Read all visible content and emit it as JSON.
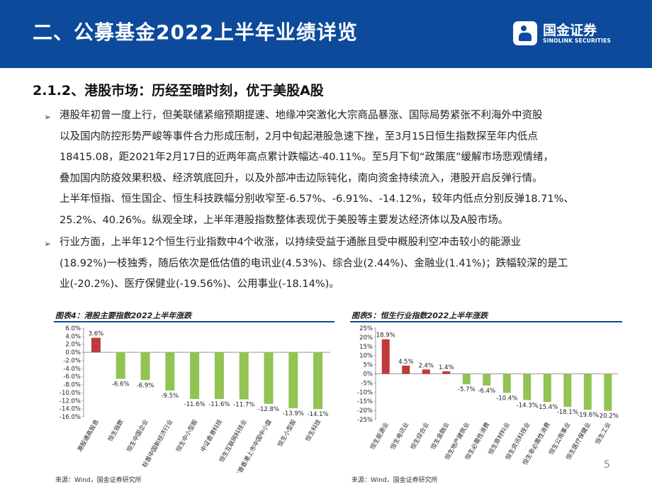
{
  "header": {
    "title": "二、公募基金2022上半年业绩详览",
    "logo_cn": "国金证券",
    "logo_en": "SINOLINK SECURITIES",
    "bg_color": "#0d4a9b"
  },
  "subtitle": "2.1.2、港股市场：历经至暗时刻，优于美股A股",
  "bullets": [
    {
      "icon": "arrow-bullet-icon",
      "lines": [
        "港股年初曾一度上行，但美联储紧缩预期提速、地缘冲突激化大宗商品暴涨、国际局势紧张不利海外中资股",
        "以及国内防控形势严峻等事件合力形成压制，2月中旬起港股急速下挫，至3月15日恒生指数探至年内低点",
        "18415.08，距2021年2月17日的近两年高点累计跌幅达-40.11%。至5月下旬“政策底”缓解市场悲观情绪，",
        "叠加国内防疫效果积极、经济筑底回升，以及外部冲击边际钝化，南向资金持续流入，港股开启反弹行情。",
        "上半年恒指、恒生国企、恒生科技跌幅分别收窄至-6.57%、-6.91%、-14.12%，较年内低点分别反弹18.71%、",
        "25.2%、40.26%。纵观全球，上半年港股指数整体表现优于美股等主要发达经济体以及A股市场。"
      ]
    },
    {
      "icon": "arrow-bullet-icon",
      "lines": [
        "行业方面，上半年12个恒生行业指数中4个收涨，以持续受益于通胀且受中概股利空冲击较小的能源业",
        "(18.92%)一枝独秀，随后依次是低估值的电讯业(4.53%)、综合业(2.44%)、金融业(1.41%)；跌幅较深的是工",
        "业(-20.2%)、医疗保健业(-19.56%)、公用事业(-18.14%)。"
      ]
    }
  ],
  "figures": [
    {
      "title": "图表4：港股主要指数2022上半年涨跌",
      "source": "来源：Wind，国金证券研究所"
    },
    {
      "title": "图表5：恒生行业指数2022上半年涨跌",
      "source": "来源：Wind，国金证券研究所"
    }
  ],
  "chart_data": [
    {
      "type": "bar",
      "categories": [
        "港股通高股息",
        "恒生指数",
        "恒生中国企业",
        "标普中国新经济行业",
        "恒生中小型股",
        "中证香港科技",
        "恒生互联网科技业",
        "标普香港上市中国中小盘",
        "恒生小型股",
        "恒生科技"
      ],
      "values": [
        3.6,
        -6.6,
        -6.9,
        -9.5,
        -11.6,
        -11.6,
        -11.7,
        -12.8,
        -13.9,
        -14.1
      ],
      "data_labels": [
        "3.6%",
        "-6.6%",
        "-6.9%",
        "-9.5%",
        "-11.6%",
        "-11.6%",
        "-11.7%",
        "-12.8%",
        "-13.9%",
        "-14.1%"
      ],
      "ylim": [
        -16,
        6
      ],
      "yticks": [
        "6.0%",
        "4.0%",
        "2.0%",
        "0.0%",
        "-2.0%",
        "-4.0%",
        "-6.0%",
        "-8.0%",
        "-10.0%",
        "-12.0%",
        "-14.0%",
        "-16.0%"
      ],
      "ytick_values": [
        6,
        4,
        2,
        0,
        -2,
        -4,
        -6,
        -8,
        -10,
        -12,
        -14,
        -16
      ],
      "positive_color": "#c0393b",
      "negative_color": "#92c353",
      "grid": false
    },
    {
      "type": "bar",
      "categories": [
        "恒生能源业",
        "恒生电讯业",
        "恒生综合业",
        "恒生金融业",
        "恒生地产建筑业",
        "恒生必需性消费",
        "恒生原材料业",
        "恒生资讯科技业",
        "恒生非必需性消费",
        "恒生公用事业",
        "恒生医疗保健业",
        "恒生工业"
      ],
      "values": [
        18.9,
        4.5,
        2.4,
        1.4,
        -5.7,
        -6.4,
        -10.4,
        -14.3,
        -15.4,
        -18.1,
        -19.6,
        -20.2
      ],
      "data_labels": [
        "18.9%",
        "4.5%",
        "2.4%",
        "1.4%",
        "-5.7%",
        "-6.4%",
        "-10.4%",
        "-14.3%",
        "-15.4%",
        "-18.1%",
        "-19.6%",
        "-20.2%"
      ],
      "ylim": [
        -25,
        25
      ],
      "yticks": [
        "25%",
        "20%",
        "15%",
        "10%",
        "5%",
        "0%",
        "-5%",
        "-10%",
        "-15%",
        "-20%",
        "-25%"
      ],
      "ytick_values": [
        25,
        20,
        15,
        10,
        5,
        0,
        -5,
        -10,
        -15,
        -20,
        -25
      ],
      "positive_color": "#c0393b",
      "negative_color": "#92c353",
      "grid": false
    }
  ],
  "page_number": "5"
}
